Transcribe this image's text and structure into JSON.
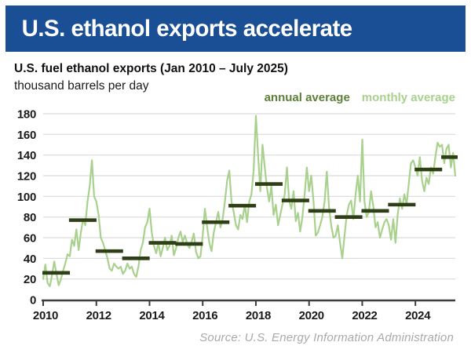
{
  "header": {
    "title": "U.S. ethanol exports accelerate"
  },
  "chart_header": {
    "title": "U.S. fuel ethanol exports (Jan 2010 – July 2025)",
    "units": "thousand barrels per day"
  },
  "legend": {
    "annual": "annual average",
    "monthly": "monthly average"
  },
  "source": "Source: U.S. Energy Information Administration",
  "colors": {
    "header_bg": "#1a4f96",
    "header_text": "#ffffff",
    "annual_bar": "#2e3f15",
    "annual_legend_text": "#5d8038",
    "monthly_line": "#a9d18e",
    "grid": "#d9d9d9",
    "axis": "#3d3d3d",
    "tick_text": "#1a1a1a",
    "source_text": "#a9a9a9"
  },
  "chart_data": {
    "type": "line",
    "title": "U.S. fuel ethanol exports (Jan 2010 – July 2025)",
    "ylabel": "thousand barrels per day",
    "frequency": "monthly",
    "x_start": "2010-01",
    "x_end": "2025-07",
    "ylim": [
      0,
      180
    ],
    "ytick_step": 20,
    "yticks": [
      0,
      20,
      40,
      60,
      80,
      100,
      120,
      140,
      160,
      180
    ],
    "xticks": [
      2010,
      2012,
      2014,
      2016,
      2018,
      2020,
      2022,
      2024
    ],
    "grid": "horizontal",
    "legend_position": "top-right",
    "series": [
      {
        "name": "monthly average",
        "values": [
          20,
          34,
          16,
          13,
          24,
          37,
          25,
          14,
          20,
          28,
          35,
          44,
          42,
          58,
          52,
          68,
          48,
          65,
          78,
          72,
          95,
          110,
          135,
          100,
          95,
          82,
          60,
          55,
          48,
          40,
          30,
          28,
          35,
          32,
          30,
          32,
          25,
          28,
          35,
          30,
          32,
          25,
          22,
          32,
          48,
          55,
          70,
          75,
          88,
          65,
          52,
          45,
          55,
          42,
          50,
          60,
          48,
          52,
          62,
          43,
          50,
          60,
          66,
          56,
          62,
          54,
          50,
          56,
          64,
          46,
          40,
          42,
          62,
          88,
          70,
          55,
          47,
          65,
          75,
          85,
          70,
          78,
          95,
          115,
          125,
          95,
          85,
          72,
          68,
          82,
          78,
          92,
          75,
          95,
          102,
          125,
          178,
          140,
          105,
          150,
          128,
          108,
          95,
          110,
          82,
          92,
          72,
          82,
          92,
          102,
          128,
          96,
          88,
          105,
          76,
          84,
          66,
          80,
          102,
          128,
          105,
          120,
          95,
          62,
          65,
          72,
          80,
          95,
          124,
          90,
          72,
          60,
          62,
          72,
          55,
          40,
          62,
          82,
          92,
          96,
          78,
          102,
          120,
          95,
          155,
          95,
          80,
          85,
          105,
          90,
          70,
          75,
          60,
          68,
          75,
          78,
          72,
          58,
          78,
          55,
          82,
          98,
          88,
          102,
          92,
          112,
          132,
          135,
          128,
          120,
          138,
          115,
          105,
          118,
          112,
          128,
          122,
          138,
          152,
          148,
          150,
          132,
          146,
          150,
          128,
          142,
          120
        ]
      },
      {
        "name": "annual average",
        "years": [
          2010,
          2011,
          2012,
          2013,
          2014,
          2015,
          2016,
          2017,
          2018,
          2019,
          2020,
          2021,
          2022,
          2023,
          2024,
          2025
        ],
        "values": [
          26,
          77,
          47,
          40,
          55,
          54,
          75,
          91,
          112,
          96,
          86,
          80,
          86,
          92,
          126,
          138
        ]
      }
    ]
  }
}
